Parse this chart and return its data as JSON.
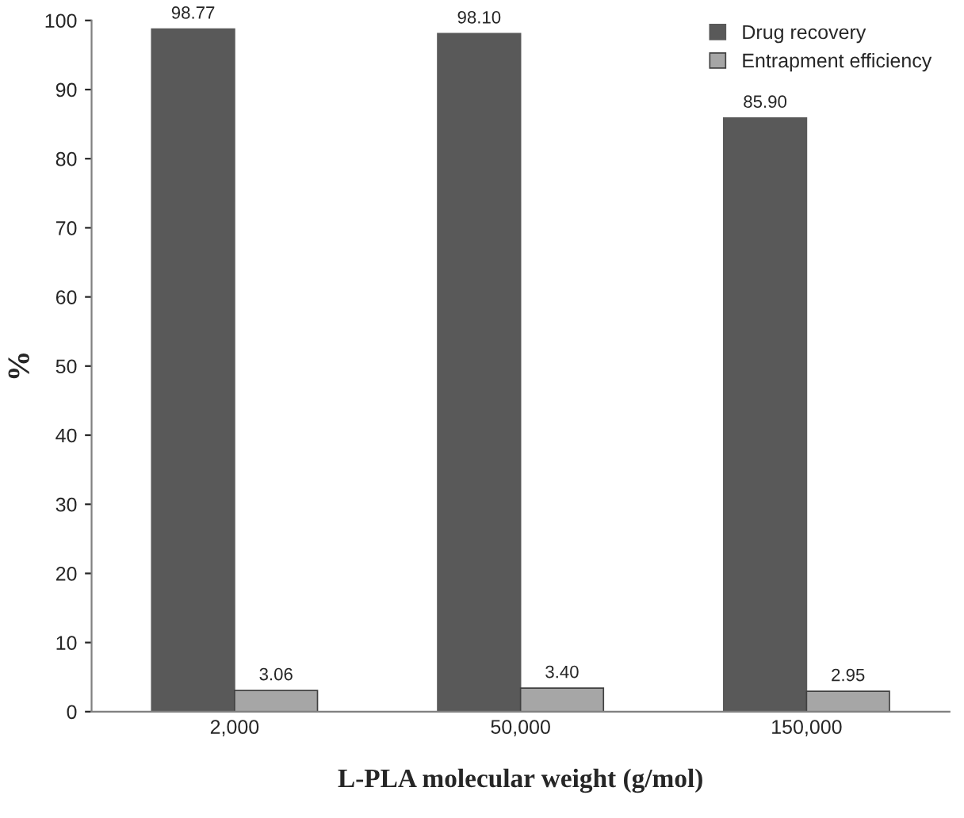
{
  "chart_data": {
    "type": "bar",
    "xlabel": "L-PLA molecular weight (g/mol)",
    "ylabel": "%",
    "categories": [
      "2,000",
      "50,000",
      "150,000"
    ],
    "series": [
      {
        "name": "Drug recovery",
        "color": "#595959",
        "values": [
          98.77,
          98.1,
          85.9
        ],
        "value_labels": [
          "98.77",
          "98.10",
          "85.90"
        ]
      },
      {
        "name": "Entrapment efficiency",
        "color": "#a6a6a6",
        "values": [
          3.06,
          3.4,
          2.95
        ],
        "value_labels": [
          "3.06",
          "3.40",
          "2.95"
        ]
      }
    ],
    "ylim": [
      0,
      100
    ],
    "yticks": [
      0,
      10,
      20,
      30,
      40,
      50,
      60,
      70,
      80,
      90,
      100
    ],
    "grid": false,
    "legend": "top right"
  }
}
